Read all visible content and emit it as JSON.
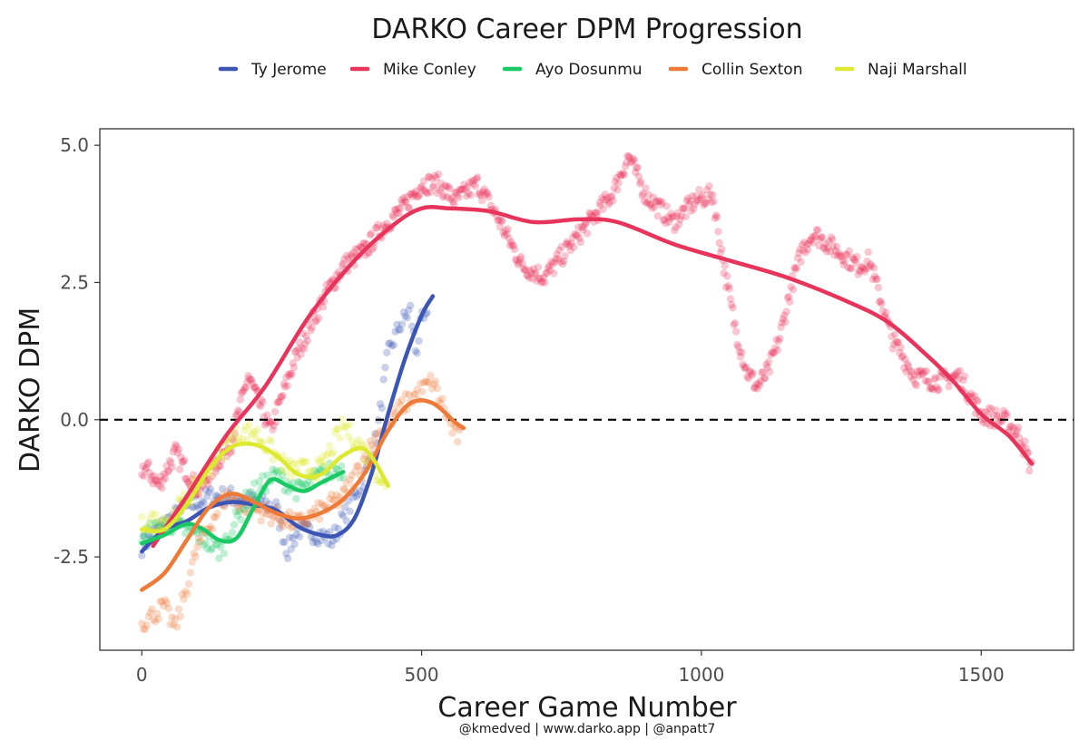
{
  "chart_data": {
    "type": "scatter",
    "title": "DARKO Career DPM Progression",
    "xlabel": "Career Game Number",
    "ylabel": "DARKO DPM",
    "caption": "@kmedved | www.darko.app | @anpatt7",
    "xlim": [
      -75,
      1665
    ],
    "ylim": [
      -4.2,
      5.3
    ],
    "xticks": [
      0,
      500,
      1000,
      1500
    ],
    "xtick_labels": [
      "0",
      "500",
      "1000",
      "1500"
    ],
    "yticks": [
      -2.5,
      0,
      2.5,
      5
    ],
    "ytick_labels": [
      "-2.5",
      "0.0",
      "2.5",
      "5.0"
    ],
    "reference_line": {
      "y": 0,
      "style": "dashed"
    },
    "grid": false,
    "legend_position": "top",
    "series": [
      {
        "name": "Ty Jerome",
        "color": "#3b55b5",
        "n_games": 510,
        "trend": [
          [
            0,
            -2.4
          ],
          [
            40,
            -2.0
          ],
          [
            80,
            -1.85
          ],
          [
            120,
            -1.6
          ],
          [
            160,
            -1.5
          ],
          [
            200,
            -1.55
          ],
          [
            240,
            -1.65
          ],
          [
            280,
            -1.95
          ],
          [
            320,
            -2.1
          ],
          [
            350,
            -2.1
          ],
          [
            380,
            -1.8
          ],
          [
            410,
            -1.0
          ],
          [
            440,
            0.1
          ],
          [
            470,
            1.1
          ],
          [
            500,
            1.9
          ],
          [
            520,
            2.25
          ]
        ],
        "points": [
          [
            0,
            -2.3
          ],
          [
            40,
            -1.9
          ],
          [
            80,
            -1.6
          ],
          [
            120,
            -1.4
          ],
          [
            160,
            -1.4
          ],
          [
            200,
            -1.5
          ],
          [
            240,
            -1.6
          ],
          [
            260,
            -2.4
          ],
          [
            280,
            -2.0
          ],
          [
            320,
            -2.1
          ],
          [
            340,
            -2.2
          ],
          [
            370,
            -1.6
          ],
          [
            400,
            -1.0
          ],
          [
            420,
            -0.3
          ],
          [
            440,
            1.2
          ],
          [
            460,
            1.7
          ],
          [
            480,
            2.0
          ],
          [
            490,
            1.2
          ],
          [
            500,
            1.8
          ]
        ]
      },
      {
        "name": "Mike Conley",
        "color": "#e8335a",
        "n_games": 1590,
        "trend": [
          [
            20,
            -2.3
          ],
          [
            80,
            -1.4
          ],
          [
            150,
            -0.3
          ],
          [
            220,
            0.6
          ],
          [
            300,
            1.9
          ],
          [
            380,
            2.9
          ],
          [
            450,
            3.55
          ],
          [
            500,
            3.85
          ],
          [
            550,
            3.85
          ],
          [
            620,
            3.8
          ],
          [
            700,
            3.6
          ],
          [
            780,
            3.65
          ],
          [
            850,
            3.6
          ],
          [
            950,
            3.2
          ],
          [
            1050,
            2.9
          ],
          [
            1150,
            2.6
          ],
          [
            1250,
            2.2
          ],
          [
            1330,
            1.8
          ],
          [
            1400,
            1.2
          ],
          [
            1450,
            0.7
          ],
          [
            1500,
            0.1
          ],
          [
            1550,
            -0.3
          ],
          [
            1590,
            -0.8
          ]
        ],
        "points": [
          [
            10,
            -0.9
          ],
          [
            30,
            -1.2
          ],
          [
            60,
            -0.6
          ],
          [
            100,
            -1.3
          ],
          [
            160,
            -0.4
          ],
          [
            190,
            0.8
          ],
          [
            230,
            -0.2
          ],
          [
            270,
            1.0
          ],
          [
            300,
            1.7
          ],
          [
            330,
            2.3
          ],
          [
            360,
            2.8
          ],
          [
            400,
            3.1
          ],
          [
            430,
            3.5
          ],
          [
            470,
            3.9
          ],
          [
            500,
            4.3
          ],
          [
            530,
            4.3
          ],
          [
            560,
            4.0
          ],
          [
            600,
            4.3
          ],
          [
            640,
            3.6
          ],
          [
            680,
            2.8
          ],
          [
            720,
            2.6
          ],
          [
            760,
            3.1
          ],
          [
            800,
            3.6
          ],
          [
            840,
            4.1
          ],
          [
            870,
            4.8
          ],
          [
            900,
            4.1
          ],
          [
            950,
            3.6
          ],
          [
            990,
            4.0
          ],
          [
            1020,
            4.1
          ],
          [
            1040,
            2.8
          ],
          [
            1060,
            1.7
          ],
          [
            1080,
            0.9
          ],
          [
            1100,
            0.6
          ],
          [
            1120,
            0.9
          ],
          [
            1140,
            1.5
          ],
          [
            1160,
            2.4
          ],
          [
            1180,
            3.1
          ],
          [
            1200,
            3.4
          ],
          [
            1240,
            3.1
          ],
          [
            1280,
            2.8
          ],
          [
            1300,
            2.9
          ],
          [
            1340,
            1.5
          ],
          [
            1380,
            0.8
          ],
          [
            1420,
            0.7
          ],
          [
            1460,
            0.8
          ],
          [
            1500,
            0.1
          ],
          [
            1540,
            0.0
          ],
          [
            1570,
            -0.3
          ],
          [
            1590,
            -0.9
          ]
        ]
      },
      {
        "name": "Ayo Dosunmu",
        "color": "#18c964",
        "n_games": 360,
        "trend": [
          [
            0,
            -2.25
          ],
          [
            40,
            -2.1
          ],
          [
            80,
            -1.9
          ],
          [
            110,
            -2.0
          ],
          [
            140,
            -2.2
          ],
          [
            170,
            -2.15
          ],
          [
            200,
            -1.6
          ],
          [
            230,
            -1.1
          ],
          [
            260,
            -1.2
          ],
          [
            290,
            -1.3
          ],
          [
            320,
            -1.15
          ],
          [
            350,
            -1.0
          ],
          [
            360,
            -0.95
          ]
        ],
        "points": [
          [
            0,
            -2.1
          ],
          [
            50,
            -1.9
          ],
          [
            100,
            -2.1
          ],
          [
            140,
            -2.4
          ],
          [
            190,
            -1.4
          ],
          [
            240,
            -1.0
          ],
          [
            280,
            -1.3
          ],
          [
            320,
            -1.0
          ],
          [
            350,
            -0.9
          ]
        ]
      },
      {
        "name": "Collin Sexton",
        "color": "#ee7a38",
        "n_games": 570,
        "trend": [
          [
            0,
            -3.1
          ],
          [
            40,
            -2.8
          ],
          [
            80,
            -2.2
          ],
          [
            120,
            -1.6
          ],
          [
            160,
            -1.35
          ],
          [
            200,
            -1.5
          ],
          [
            240,
            -1.7
          ],
          [
            280,
            -1.8
          ],
          [
            320,
            -1.7
          ],
          [
            360,
            -1.45
          ],
          [
            400,
            -0.95
          ],
          [
            440,
            -0.2
          ],
          [
            480,
            0.3
          ],
          [
            520,
            0.3
          ],
          [
            560,
            -0.05
          ],
          [
            575,
            -0.15
          ]
        ],
        "points": [
          [
            0,
            -3.7
          ],
          [
            40,
            -3.4
          ],
          [
            60,
            -3.8
          ],
          [
            100,
            -2.3
          ],
          [
            150,
            -1.4
          ],
          [
            220,
            -1.7
          ],
          [
            280,
            -1.9
          ],
          [
            360,
            -1.4
          ],
          [
            420,
            -0.3
          ],
          [
            470,
            0.3
          ],
          [
            520,
            0.7
          ],
          [
            560,
            -0.3
          ]
        ]
      },
      {
        "name": "Naji Marshall",
        "color": "#dde92e",
        "n_games": 440,
        "trend": [
          [
            0,
            -2.0
          ],
          [
            40,
            -2.0
          ],
          [
            80,
            -1.55
          ],
          [
            120,
            -0.9
          ],
          [
            160,
            -0.5
          ],
          [
            200,
            -0.45
          ],
          [
            240,
            -0.65
          ],
          [
            280,
            -1.0
          ],
          [
            320,
            -1.0
          ],
          [
            360,
            -0.65
          ],
          [
            400,
            -0.55
          ],
          [
            440,
            -1.2
          ]
        ],
        "points": [
          [
            0,
            -1.9
          ],
          [
            50,
            -1.8
          ],
          [
            100,
            -1.2
          ],
          [
            160,
            -0.3
          ],
          [
            200,
            -0.2
          ],
          [
            260,
            -0.9
          ],
          [
            320,
            -0.9
          ],
          [
            360,
            -0.1
          ],
          [
            400,
            -0.6
          ],
          [
            440,
            -1.3
          ]
        ]
      }
    ]
  }
}
